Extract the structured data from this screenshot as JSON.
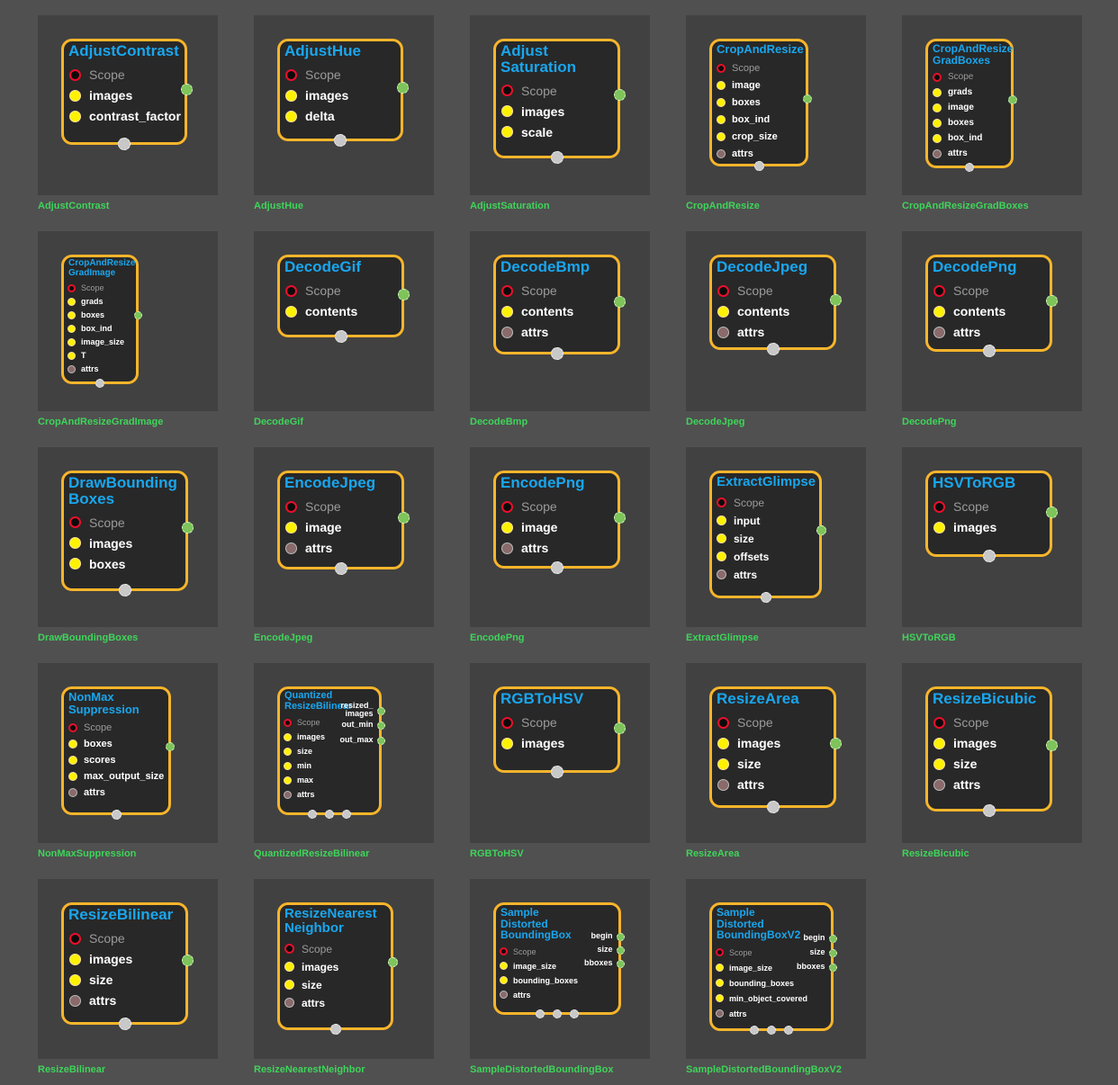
{
  "nodes": [
    {
      "title": "AdjustContrast",
      "caption": "AdjustContrast",
      "inputs": [
        "images",
        "contrast_factor"
      ],
      "attrs": [],
      "outputs": [
        ""
      ],
      "bottom_outputs": 1
    },
    {
      "title": "AdjustHue",
      "caption": "AdjustHue",
      "inputs": [
        "images",
        "delta"
      ],
      "attrs": [],
      "outputs": [
        ""
      ],
      "bottom_outputs": 1
    },
    {
      "title": "Adjust\nSaturation",
      "caption": "AdjustSaturation",
      "inputs": [
        "images",
        "scale"
      ],
      "attrs": [],
      "outputs": [
        ""
      ],
      "bottom_outputs": 1
    },
    {
      "title": "CropAndResize",
      "caption": "CropAndResize",
      "inputs": [
        "image",
        "boxes",
        "box_ind",
        "crop_size"
      ],
      "attrs": [
        "attrs"
      ],
      "outputs": [
        ""
      ],
      "bottom_outputs": 1
    },
    {
      "title": "CropAndResize\nGradBoxes",
      "caption": "CropAndResizeGradBoxes",
      "inputs": [
        "grads",
        "image",
        "boxes",
        "box_ind"
      ],
      "attrs": [
        "attrs"
      ],
      "outputs": [
        ""
      ],
      "bottom_outputs": 1
    },
    {
      "title": "CropAndResize\nGradImage",
      "caption": "CropAndResizeGradImage",
      "inputs": [
        "grads",
        "boxes",
        "box_ind",
        "image_size",
        "T"
      ],
      "attrs": [
        "attrs"
      ],
      "outputs": [
        ""
      ],
      "bottom_outputs": 1
    },
    {
      "title": "DecodeGif",
      "caption": "DecodeGif",
      "inputs": [
        "contents"
      ],
      "attrs": [],
      "outputs": [
        ""
      ],
      "bottom_outputs": 1
    },
    {
      "title": "DecodeBmp",
      "caption": "DecodeBmp",
      "inputs": [
        "contents"
      ],
      "attrs": [
        "attrs"
      ],
      "outputs": [
        ""
      ],
      "bottom_outputs": 1
    },
    {
      "title": "DecodeJpeg",
      "caption": "DecodeJpeg",
      "inputs": [
        "contents"
      ],
      "attrs": [
        "attrs"
      ],
      "outputs": [
        ""
      ],
      "bottom_outputs": 1
    },
    {
      "title": "DecodePng",
      "caption": "DecodePng",
      "inputs": [
        "contents"
      ],
      "attrs": [
        "attrs"
      ],
      "outputs": [
        ""
      ],
      "bottom_outputs": 1
    },
    {
      "title": "DrawBounding\nBoxes",
      "caption": "DrawBoundingBoxes",
      "inputs": [
        "images",
        "boxes"
      ],
      "attrs": [],
      "outputs": [
        ""
      ],
      "bottom_outputs": 1
    },
    {
      "title": "EncodeJpeg",
      "caption": "EncodeJpeg",
      "inputs": [
        "image"
      ],
      "attrs": [
        "attrs"
      ],
      "outputs": [
        ""
      ],
      "bottom_outputs": 1
    },
    {
      "title": "EncodePng",
      "caption": "EncodePng",
      "inputs": [
        "image"
      ],
      "attrs": [
        "attrs"
      ],
      "outputs": [
        ""
      ],
      "bottom_outputs": 1
    },
    {
      "title": "ExtractGlimpse",
      "caption": "ExtractGlimpse",
      "inputs": [
        "input",
        "size",
        "offsets"
      ],
      "attrs": [
        "attrs"
      ],
      "outputs": [
        ""
      ],
      "bottom_outputs": 1
    },
    {
      "title": "HSVToRGB",
      "caption": "HSVToRGB",
      "inputs": [
        "images"
      ],
      "attrs": [],
      "outputs": [
        ""
      ],
      "bottom_outputs": 1
    },
    {
      "title": "NonMax\nSuppression",
      "caption": "NonMaxSuppression",
      "inputs": [
        "boxes",
        "scores",
        "max_output_size"
      ],
      "attrs": [
        "attrs"
      ],
      "outputs": [
        ""
      ],
      "bottom_outputs": 1
    },
    {
      "title": "Quantized\nResizeBilinear",
      "caption": "QuantizedResizeBilinear",
      "inputs": [
        "images",
        "size",
        "min",
        "max"
      ],
      "attrs": [
        "attrs"
      ],
      "outputs": [
        "resized_\nimages",
        "out_min",
        "out_max"
      ],
      "bottom_outputs": 3
    },
    {
      "title": "RGBToHSV",
      "caption": "RGBToHSV",
      "inputs": [
        "images"
      ],
      "attrs": [],
      "outputs": [
        ""
      ],
      "bottom_outputs": 1
    },
    {
      "title": "ResizeArea",
      "caption": "ResizeArea",
      "inputs": [
        "images",
        "size"
      ],
      "attrs": [
        "attrs"
      ],
      "outputs": [
        ""
      ],
      "bottom_outputs": 1
    },
    {
      "title": "ResizeBicubic",
      "caption": "ResizeBicubic",
      "inputs": [
        "images",
        "size"
      ],
      "attrs": [
        "attrs"
      ],
      "outputs": [
        ""
      ],
      "bottom_outputs": 1
    },
    {
      "title": "ResizeBilinear",
      "caption": "ResizeBilinear",
      "inputs": [
        "images",
        "size"
      ],
      "attrs": [
        "attrs"
      ],
      "outputs": [
        ""
      ],
      "bottom_outputs": 1
    },
    {
      "title": "ResizeNearest\nNeighbor",
      "caption": "ResizeNearestNeighbor",
      "inputs": [
        "images",
        "size"
      ],
      "attrs": [
        "attrs"
      ],
      "outputs": [
        ""
      ],
      "bottom_outputs": 1
    },
    {
      "title": "Sample\nDistorted\nBoundingBox",
      "caption": "SampleDistortedBoundingBox",
      "inputs": [
        "image_size",
        "bounding_boxes"
      ],
      "attrs": [
        "attrs"
      ],
      "outputs": [
        "begin",
        "size",
        "bboxes"
      ],
      "bottom_outputs": 3
    },
    {
      "title": "Sample\nDistorted\nBoundingBoxV2",
      "caption": "SampleDistortedBoundingBoxV2",
      "inputs": [
        "image_size",
        "bounding_boxes",
        "min_object_covered"
      ],
      "attrs": [
        "attrs"
      ],
      "outputs": [
        "begin",
        "size",
        "bboxes"
      ],
      "bottom_outputs": 3
    }
  ],
  "scope_label": "Scope",
  "colors": {
    "page_bg": "#505050",
    "tile_bg": "#414141",
    "node_bg": "#282828",
    "node_border": "#f7b52b",
    "title": "#19a6ee",
    "caption": "#3fd45a",
    "input_pin": "#fff200",
    "scope_pin": "#e8102a",
    "attr_pin": "#8a6a6a",
    "output_pin": "#7ec45a",
    "bottom_pin": "#c8c8c8"
  }
}
